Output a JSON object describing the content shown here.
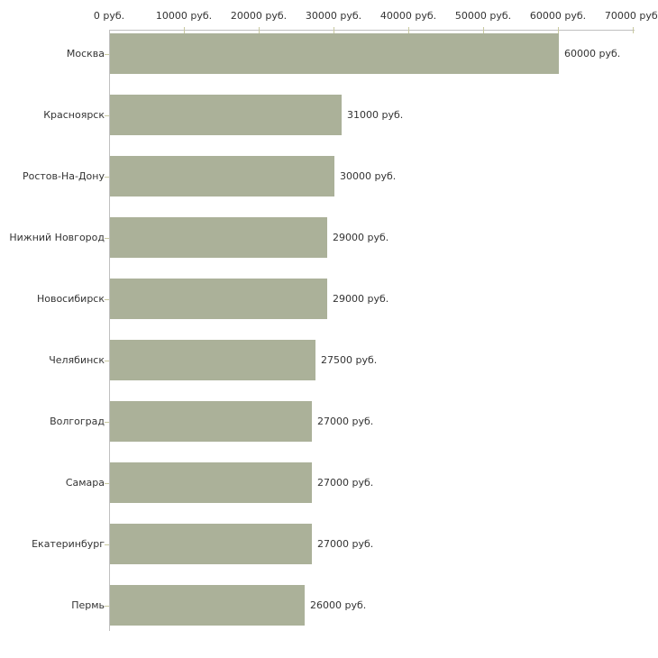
{
  "chart_data": {
    "type": "bar",
    "orientation": "horizontal",
    "title": "",
    "xlabel": "",
    "ylabel": "",
    "unit_suffix": " руб.",
    "xlim": [
      0,
      70000
    ],
    "grid": false,
    "legend": "none",
    "x_ticks": [
      {
        "value": 0,
        "label": "0 руб."
      },
      {
        "value": 10000,
        "label": "10000 руб."
      },
      {
        "value": 20000,
        "label": "20000 руб."
      },
      {
        "value": 30000,
        "label": "30000 руб."
      },
      {
        "value": 40000,
        "label": "40000 руб."
      },
      {
        "value": 50000,
        "label": "50000 руб."
      },
      {
        "value": 60000,
        "label": "60000 руб."
      },
      {
        "value": 70000,
        "label": "70000 руб."
      }
    ],
    "categories": [
      "Москва",
      "Красноярск",
      "Ростов-На-Дону",
      "Нижний Новгород",
      "Новосибирск",
      "Челябинск",
      "Волгоград",
      "Самара",
      "Екатеринбург",
      "Пермь"
    ],
    "values": [
      60000,
      31000,
      30000,
      29000,
      29000,
      27500,
      27000,
      27000,
      27000,
      26000
    ],
    "value_labels": [
      "60000 руб.",
      "31000 руб.",
      "30000 руб.",
      "29000 руб.",
      "29000 руб.",
      "27500 руб.",
      "27000 руб.",
      "27000 руб.",
      "27000 руб.",
      "26000 руб."
    ]
  },
  "colors": {
    "bar_fill": "#abb199",
    "axis_line": "#c0c0c0",
    "tick_mark": "#c9c9a0",
    "text": "#333333",
    "background": "#ffffff"
  }
}
